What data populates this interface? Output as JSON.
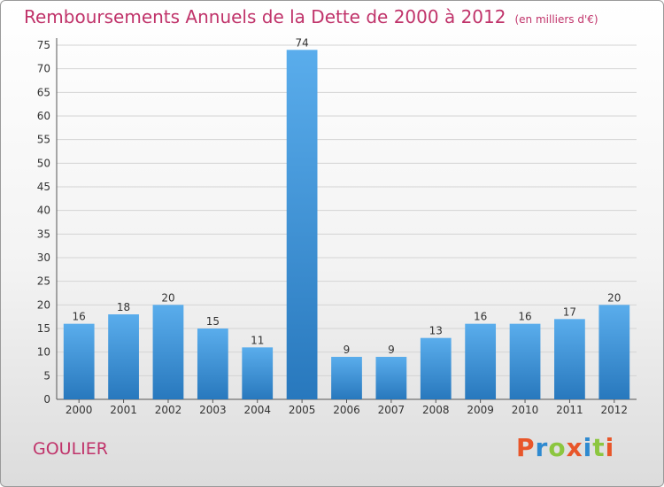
{
  "chart_data": {
    "type": "bar",
    "title": "Remboursements Annuels de la Dette de 2000 à 2012",
    "subtitle": "(en milliers d'€)",
    "categories": [
      "2000",
      "2001",
      "2002",
      "2003",
      "2004",
      "2005",
      "2006",
      "2007",
      "2008",
      "2009",
      "2010",
      "2011",
      "2012"
    ],
    "values": [
      16,
      18,
      20,
      15,
      11,
      74,
      9,
      9,
      13,
      16,
      16,
      17,
      20
    ],
    "ylim": [
      0,
      75
    ],
    "yticks": [
      0,
      5,
      10,
      15,
      20,
      25,
      30,
      35,
      40,
      45,
      50,
      55,
      60,
      65,
      70,
      75
    ],
    "grid": true,
    "bar_color": "#3d95d8"
  },
  "footer": {
    "commune": "GOULIER",
    "logo": "Proxiti"
  },
  "colors": {
    "title": "#c0336a",
    "logo_letters": [
      "#e8562a",
      "#2f8ad0",
      "#8cc63f",
      "#e8562a",
      "#2f8ad0",
      "#8cc63f",
      "#e8562a"
    ]
  }
}
